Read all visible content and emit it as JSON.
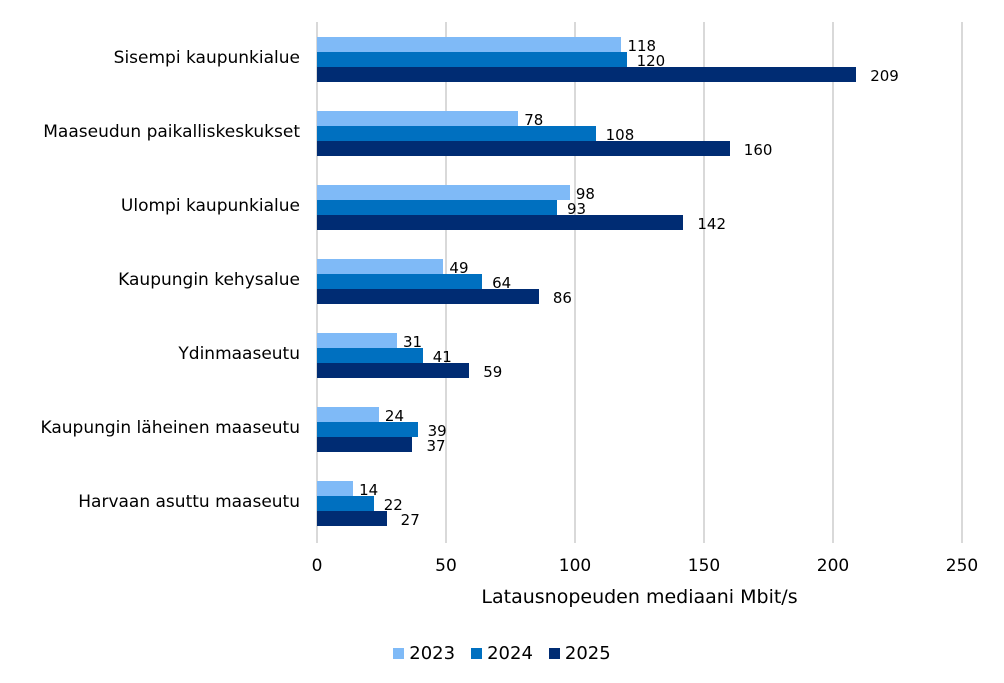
{
  "chart_data": {
    "type": "bar",
    "orientation": "horizontal",
    "title": "",
    "xlabel": "Latausnopeuden mediaani Mbit/s",
    "ylabel": "",
    "xlim": [
      0,
      250
    ],
    "xticks": [
      0,
      50,
      100,
      150,
      200,
      250
    ],
    "grid": true,
    "legend_position": "bottom",
    "categories": [
      "Sisempi kaupunkialue",
      "Maaseudun paikalliskeskukset",
      "Ulompi kaupunkialue",
      "Kaupungin kehysalue",
      "Ydinmaaseutu",
      "Kaupungin läheinen maaseutu",
      "Harvaan asuttu maaseutu"
    ],
    "series": [
      {
        "name": "2023",
        "color": "#7FBAF7",
        "values": [
          118,
          78,
          98,
          49,
          31,
          24,
          14
        ]
      },
      {
        "name": "2024",
        "color": "#0070C0",
        "values": [
          120,
          108,
          93,
          64,
          41,
          39,
          22
        ]
      },
      {
        "name": "2025",
        "color": "#002C73",
        "values": [
          209,
          160,
          142,
          86,
          59,
          37,
          27
        ]
      }
    ]
  }
}
